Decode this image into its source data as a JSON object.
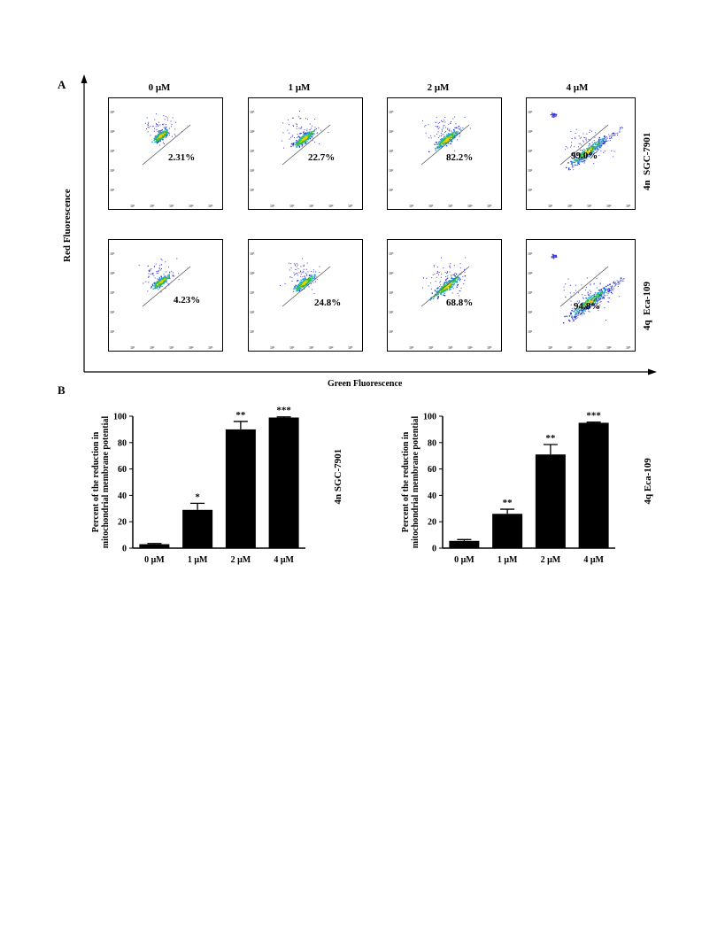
{
  "panel_a": {
    "letter": "A",
    "concentrations": [
      "0 μM",
      "1 μM",
      "2 μM",
      "4 μM"
    ],
    "rows": [
      {
        "compound": "4n",
        "cell_line": "SGC-7901",
        "percents": [
          "2.31%",
          "22.7%",
          "82.2%",
          "99.0%"
        ]
      },
      {
        "compound": "4q",
        "cell_line": "Eca-109",
        "percents": [
          "4.23%",
          "24.8%",
          "68.8%",
          "94.8%"
        ]
      }
    ],
    "y_axis_label": "Red Fluorescence",
    "x_axis_label": "Green Fluorescence",
    "tick_labels": [
      "10¹",
      "10²",
      "10³",
      "10⁴",
      "10⁵"
    ]
  },
  "panel_b": {
    "letter": "B"
  },
  "chart_data": [
    {
      "type": "bar",
      "compound": "4n",
      "cell_line": "SGC-7901",
      "categories": [
        "0 μM",
        "1 μM",
        "2 μM",
        "4 μM"
      ],
      "values": [
        3,
        29,
        90,
        99
      ],
      "errors": [
        0.5,
        5,
        6,
        0.5
      ],
      "significance": [
        "",
        "*",
        "**",
        "***"
      ],
      "ylabel": "Percent of the reduction in mitochondrial membrane potential",
      "ylim": [
        0,
        100
      ],
      "yticks": [
        0,
        20,
        40,
        60,
        80,
        100
      ]
    },
    {
      "type": "bar",
      "compound": "4q",
      "cell_line": "Eca-109",
      "categories": [
        "0 μM",
        "1 μM",
        "2 μM",
        "4 μM"
      ],
      "values": [
        5.5,
        26,
        71,
        95
      ],
      "errors": [
        1,
        3.5,
        7.5,
        0.5
      ],
      "significance": [
        "",
        "**",
        "**",
        "***"
      ],
      "ylabel": "Percent of the reduction in mitochondrial membrane potential",
      "ylim": [
        0,
        100
      ],
      "yticks": [
        0,
        20,
        40,
        60,
        80,
        100
      ]
    }
  ]
}
